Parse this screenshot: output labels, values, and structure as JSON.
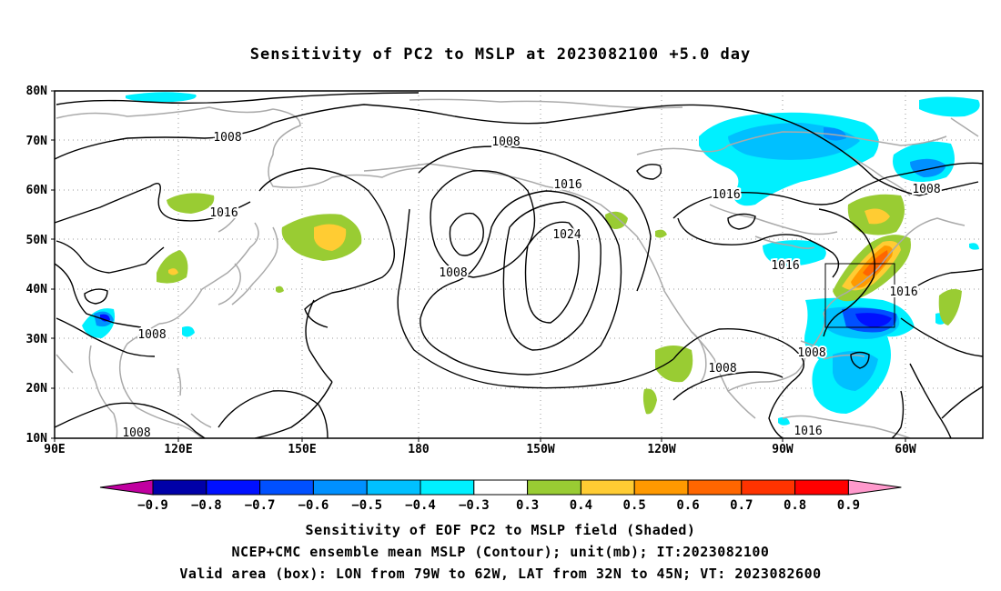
{
  "title": "Sensitivity of PC2 to MSLP at 2023082100 +5.0 day",
  "axes": {
    "lat_labels": [
      "80N",
      "70N",
      "60N",
      "50N",
      "40N",
      "30N",
      "20N",
      "10N"
    ],
    "lon_labels": [
      "90E",
      "120E",
      "150E",
      "180",
      "150W",
      "120W",
      "90W",
      "60W"
    ]
  },
  "contour_labels": [
    "1008",
    "1008",
    "1008",
    "1008",
    "1008",
    "1008",
    "1008",
    "1008",
    "1016",
    "1016",
    "1016",
    "1016",
    "1016",
    "1016",
    "1024"
  ],
  "colorbar": {
    "ticks": [
      "−0.9",
      "−0.8",
      "−0.7",
      "−0.6",
      "−0.5",
      "−0.4",
      "−0.3",
      "0.3",
      "0.4",
      "0.5",
      "0.6",
      "0.7",
      "0.8",
      "0.9"
    ],
    "colors": [
      "#c000a0",
      "#0000a8",
      "#0010ff",
      "#0050ff",
      "#0090ff",
      "#00c0ff",
      "#00f0ff",
      "#ffffff",
      "#99cc33",
      "#ffcc33",
      "#ff9900",
      "#ff6600",
      "#ff3300",
      "#ff0000",
      "#ff99cc"
    ]
  },
  "captions": {
    "line1": "Sensitivity of EOF PC2 to MSLP field (Shaded)",
    "line2": "NCEP+CMC ensemble mean MSLP (Contour); unit(mb); IT:2023082100",
    "line3": "Valid area (box): LON from 79W to 62W, LAT from 32N to 45N; VT: 2023082600"
  }
}
